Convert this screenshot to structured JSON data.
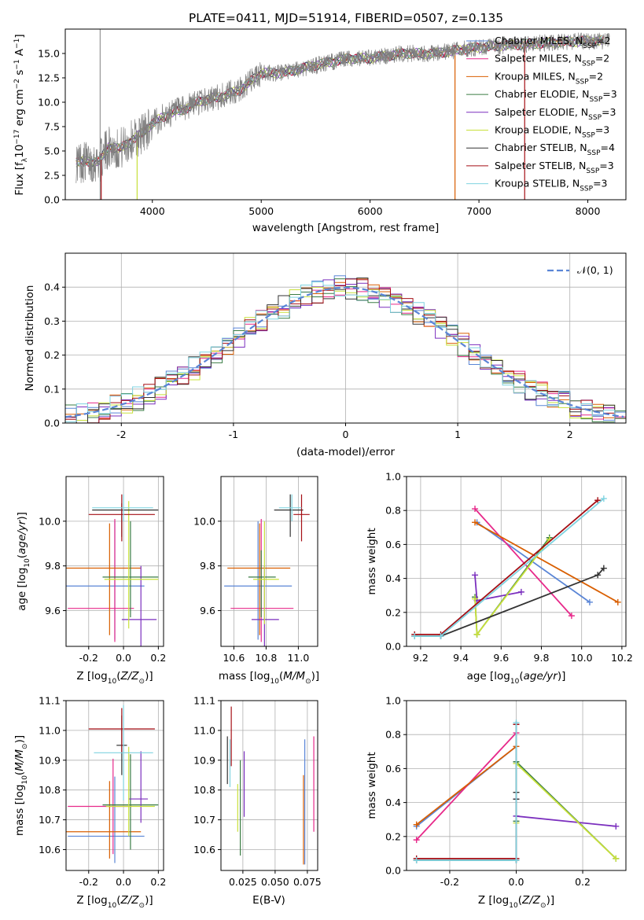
{
  "title": "PLATE=0411, MJD=51914, FIBERID=0507, z=0.135",
  "models": [
    {
      "name": "Chabrier MILES",
      "nssp": "2",
      "color": "#5a85d6"
    },
    {
      "name": "Salpeter MILES",
      "nssp": "2",
      "color": "#e7298a"
    },
    {
      "name": "Kroupa MILES",
      "nssp": "2",
      "color": "#d95f02"
    },
    {
      "name": "Chabrier ELODIE",
      "nssp": "3",
      "color": "#3a7d44"
    },
    {
      "name": "Salpeter ELODIE",
      "nssp": "3",
      "color": "#7b2fbe"
    },
    {
      "name": "Kroupa ELODIE",
      "nssp": "3",
      "color": "#c8e03a"
    },
    {
      "name": "Chabrier STELIB",
      "nssp": "4",
      "color": "#333333"
    },
    {
      "name": "Salpeter STELIB",
      "nssp": "3",
      "color": "#a50f15"
    },
    {
      "name": "Kroupa STELIB",
      "nssp": "3",
      "color": "#7fd3e0"
    }
  ],
  "chart_data": [
    {
      "id": "spectrum",
      "type": "line",
      "xlabel": "wavelength [Angstrom, rest frame]",
      "ylabel": "Flux [f_λ 10^-17 erg cm^-2 s^-1 A^-1]",
      "xlim": [
        3200,
        8350
      ],
      "ylim": [
        0,
        17.5
      ],
      "xticks": [
        4000,
        5000,
        6000,
        7000,
        8000
      ],
      "yticks": [
        0.0,
        2.5,
        5.0,
        7.5,
        10.0,
        12.5,
        15.0
      ],
      "grid": false,
      "legend": "upper right",
      "data_envelope": {
        "x": [
          3300,
          3450,
          3520,
          3600,
          3700,
          3800,
          3900,
          4000,
          4100,
          4200,
          4300,
          4400,
          4600,
          4800,
          5000,
          5200,
          5500,
          5800,
          6000,
          6300,
          6600,
          6900,
          7200,
          7500,
          7800,
          8100
        ],
        "y": [
          3.9,
          3.9,
          4.0,
          5.5,
          5.2,
          6.0,
          6.8,
          7.8,
          8.5,
          9.0,
          9.3,
          10.0,
          10.5,
          11.2,
          13.0,
          13.0,
          13.8,
          14.5,
          14.5,
          15.0,
          15.0,
          15.5,
          15.8,
          16.0,
          16.2,
          16.3
        ]
      },
      "drops": [
        {
          "series": "Salpeter STELIB",
          "x": 3530
        },
        {
          "series": "Kroupa ELODIE",
          "x": 3860
        },
        {
          "series": "Kroupa MILES",
          "x": 6780
        },
        {
          "series": "Salpeter STELIB",
          "x": 7420
        }
      ]
    },
    {
      "id": "residuals",
      "type": "area",
      "xlabel": "(data-model)/error",
      "ylabel": "Normed distribution",
      "xlim": [
        -2.5,
        2.5
      ],
      "ylim": [
        0,
        0.5
      ],
      "xticks": [
        -2,
        -1,
        0,
        1,
        2
      ],
      "yticks": [
        0.0,
        0.1,
        0.2,
        0.3,
        0.4
      ],
      "grid": true,
      "legend": "upper right",
      "reference": {
        "label": "𝒩(0, 1)",
        "mean": 0,
        "sigma": 1,
        "color": "#5a85d6"
      },
      "bin_width": 0.1
    },
    {
      "id": "age_vs_Z",
      "type": "scatter",
      "xlabel": "Z [log10(Z/Z⊙)]",
      "ylabel": "age [log10(age/yr)]",
      "xlim": [
        -0.33,
        0.23
      ],
      "ylim": [
        9.44,
        10.2
      ],
      "xticks": [
        -0.2,
        0.0,
        0.2
      ],
      "yticks": [
        9.6,
        9.8,
        10.0
      ],
      "grid": true,
      "points": [
        {
          "series": "Chabrier MILES",
          "x": -0.05,
          "y": 9.71,
          "xerr": [
            0.29,
            0.17
          ],
          "yerr": [
            0.24,
            0.29
          ]
        },
        {
          "series": "Salpeter MILES",
          "x": -0.05,
          "y": 9.61,
          "xerr": [
            0.27,
            0.11
          ],
          "yerr": [
            0.15,
            0.4
          ]
        },
        {
          "series": "Kroupa MILES",
          "x": -0.08,
          "y": 9.79,
          "xerr": [
            0.25,
            0.18
          ],
          "yerr": [
            0.3,
            0.2
          ]
        },
        {
          "series": "Chabrier ELODIE",
          "x": 0.04,
          "y": 9.75,
          "xerr": [
            0.16,
            0.16
          ],
          "yerr": [
            0.18,
            0.25
          ]
        },
        {
          "series": "Salpeter ELODIE",
          "x": 0.1,
          "y": 9.56,
          "xerr": [
            0.11,
            0.09
          ],
          "yerr": [
            0.12,
            0.24
          ]
        },
        {
          "series": "Kroupa ELODIE",
          "x": 0.03,
          "y": 9.74,
          "xerr": [
            0.14,
            0.17
          ],
          "yerr": [
            0.22,
            0.35
          ]
        },
        {
          "series": "Chabrier STELIB",
          "x": -0.01,
          "y": 10.05,
          "xerr": [
            0.17,
            0.21
          ],
          "yerr": [
            0.12,
            0.03
          ]
        },
        {
          "series": "Salpeter STELIB",
          "x": -0.01,
          "y": 10.03,
          "xerr": [
            0.19,
            0.19
          ],
          "yerr": [
            0.12,
            0.09
          ]
        },
        {
          "series": "Kroupa STELIB",
          "x": 0.0,
          "y": 10.06,
          "xerr": [
            0.18,
            0.17
          ],
          "yerr": [
            0.06,
            0.06
          ]
        }
      ]
    },
    {
      "id": "age_vs_mass",
      "type": "scatter",
      "xlabel": "mass [log10(M/M⊙)]",
      "ylabel": "",
      "xlim": [
        10.52,
        11.12
      ],
      "ylim": [
        9.44,
        10.2
      ],
      "xticks": [
        10.6,
        10.8,
        11.0
      ],
      "yticks": [
        9.6,
        9.8,
        10.0
      ],
      "grid": true,
      "points": [
        {
          "series": "Chabrier MILES",
          "x": 10.75,
          "y": 9.71,
          "xerr": [
            0.21,
            0.21
          ],
          "yerr": [
            0.24,
            0.29
          ]
        },
        {
          "series": "Salpeter MILES",
          "x": 10.77,
          "y": 9.61,
          "xerr": [
            0.19,
            0.2
          ],
          "yerr": [
            0.15,
            0.4
          ]
        },
        {
          "series": "Kroupa MILES",
          "x": 10.76,
          "y": 9.79,
          "xerr": [
            0.2,
            0.19
          ],
          "yerr": [
            0.3,
            0.2
          ]
        },
        {
          "series": "Chabrier ELODIE",
          "x": 10.77,
          "y": 9.75,
          "xerr": [
            0.08,
            0.09
          ],
          "yerr": [
            0.18,
            0.12
          ]
        },
        {
          "series": "Salpeter ELODIE",
          "x": 10.79,
          "y": 9.56,
          "xerr": [
            0.08,
            0.09
          ],
          "yerr": [
            0.12,
            0.24
          ]
        },
        {
          "series": "Kroupa ELODIE",
          "x": 10.79,
          "y": 9.74,
          "xerr": [
            0.07,
            0.09
          ],
          "yerr": [
            0.2,
            0.26
          ]
        },
        {
          "series": "Chabrier STELIB",
          "x": 10.95,
          "y": 10.05,
          "xerr": [
            0.1,
            0.08
          ],
          "yerr": [
            0.12,
            0.07
          ]
        },
        {
          "series": "Salpeter STELIB",
          "x": 11.02,
          "y": 10.03,
          "xerr": [
            0.05,
            0.05
          ],
          "yerr": [
            0.12,
            0.09
          ]
        },
        {
          "series": "Kroupa STELIB",
          "x": 10.96,
          "y": 10.06,
          "xerr": [
            0.08,
            0.06
          ],
          "yerr": [
            0.06,
            0.06
          ]
        }
      ]
    },
    {
      "id": "weight_vs_age",
      "type": "line",
      "xlabel": "age [log10(age/yr)]",
      "ylabel": "mass weight",
      "xlim": [
        9.13,
        10.22
      ],
      "ylim": [
        0,
        1
      ],
      "xticks": [
        9.2,
        9.4,
        9.6,
        9.8,
        10.0,
        10.2
      ],
      "yticks": [
        0.0,
        0.2,
        0.4,
        0.6,
        0.8,
        1.0
      ],
      "grid": true,
      "series": [
        {
          "name": "Chabrier MILES",
          "x": [
            9.48,
            10.04
          ],
          "y": [
            0.73,
            0.26
          ]
        },
        {
          "name": "Salpeter MILES",
          "x": [
            9.47,
            9.95
          ],
          "y": [
            0.81,
            0.18
          ]
        },
        {
          "name": "Kroupa MILES",
          "x": [
            9.47,
            10.18
          ],
          "y": [
            0.73,
            0.26
          ]
        },
        {
          "name": "Chabrier ELODIE",
          "x": [
            9.47,
            9.48,
            9.84
          ],
          "y": [
            0.29,
            0.07,
            0.64
          ]
        },
        {
          "name": "Salpeter ELODIE",
          "x": [
            9.47,
            9.48,
            9.7
          ],
          "y": [
            0.42,
            0.27,
            0.32
          ]
        },
        {
          "name": "Kroupa ELODIE",
          "x": [
            9.47,
            9.48,
            9.84
          ],
          "y": [
            0.28,
            0.07,
            0.63
          ]
        },
        {
          "name": "Chabrier STELIB",
          "x": [
            9.17,
            9.3,
            10.08,
            10.11
          ],
          "y": [
            0.06,
            0.06,
            0.42,
            0.46
          ]
        },
        {
          "name": "Salpeter STELIB",
          "x": [
            9.17,
            9.3,
            10.08
          ],
          "y": [
            0.07,
            0.07,
            0.86
          ]
        },
        {
          "name": "Kroupa STELIB",
          "x": [
            9.17,
            9.3,
            10.11
          ],
          "y": [
            0.06,
            0.06,
            0.87
          ]
        }
      ]
    },
    {
      "id": "mass_vs_Z",
      "type": "scatter",
      "xlabel": "Z [log10(Z/Z⊙)]",
      "ylabel": "mass [log10(M/M⊙)]",
      "xlim": [
        -0.33,
        0.23
      ],
      "ylim": [
        10.53,
        11.1
      ],
      "xticks": [
        -0.2,
        0.0,
        0.2
      ],
      "yticks": [
        10.6,
        10.7,
        10.8,
        10.9,
        11.0,
        11.1
      ],
      "grid": true,
      "points": [
        {
          "series": "Chabrier MILES",
          "x": -0.05,
          "y": 10.645,
          "xerr": [
            0.27,
            0.17
          ],
          "yerr": [
            0.09,
            0.2
          ]
        },
        {
          "series": "Salpeter MILES",
          "x": -0.06,
          "y": 10.745,
          "xerr": [
            0.26,
            0.11
          ],
          "yerr": [
            0.16,
            0.16
          ]
        },
        {
          "series": "Kroupa MILES",
          "x": -0.08,
          "y": 10.66,
          "xerr": [
            0.25,
            0.18
          ],
          "yerr": [
            0.09,
            0.17
          ]
        },
        {
          "series": "Chabrier ELODIE",
          "x": 0.04,
          "y": 10.75,
          "xerr": [
            0.16,
            0.16
          ],
          "yerr": [
            0.15,
            0.17
          ]
        },
        {
          "series": "Salpeter ELODIE",
          "x": 0.1,
          "y": 10.77,
          "xerr": [
            0.07,
            0.04
          ],
          "yerr": [
            0.08,
            0.16
          ]
        },
        {
          "series": "Kroupa ELODIE",
          "x": 0.03,
          "y": 10.745,
          "xerr": [
            0.13,
            0.15
          ],
          "yerr": [
            0.1,
            0.2
          ]
        },
        {
          "series": "Chabrier STELIB",
          "x": -0.01,
          "y": 10.95,
          "xerr": [
            0.03,
            0.03
          ],
          "yerr": [
            0.1,
            0.1
          ]
        },
        {
          "series": "Salpeter STELIB",
          "x": -0.01,
          "y": 11.005,
          "xerr": [
            0.19,
            0.19
          ],
          "yerr": [
            0.08,
            0.07
          ]
        },
        {
          "series": "Kroupa STELIB",
          "x": 0.0,
          "y": 10.925,
          "xerr": [
            0.17,
            0.17
          ],
          "yerr": [
            0.16,
            0.16
          ]
        }
      ]
    },
    {
      "id": "mass_vs_ebv",
      "type": "scatter",
      "xlabel": "E(B-V)",
      "ylabel": "",
      "xlim": [
        0.008,
        0.083
      ],
      "ylim": [
        10.53,
        11.1
      ],
      "xticks": [
        0.025,
        0.05,
        0.075
      ],
      "yticks": [
        10.6,
        10.7,
        10.8,
        10.9,
        11.0,
        11.1
      ],
      "grid": true,
      "points": [
        {
          "series": "Chabrier MILES",
          "x": 0.073,
          "y": 10.76,
          "yerr": [
            0.21,
            0.21
          ]
        },
        {
          "series": "Salpeter MILES",
          "x": 0.08,
          "y": 10.82,
          "yerr": [
            0.16,
            0.16
          ]
        },
        {
          "series": "Kroupa MILES",
          "x": 0.072,
          "y": 10.7,
          "yerr": [
            0.15,
            0.15
          ]
        },
        {
          "series": "Chabrier ELODIE",
          "x": 0.023,
          "y": 10.74,
          "yerr": [
            0.16,
            0.16
          ]
        },
        {
          "series": "Salpeter ELODIE",
          "x": 0.026,
          "y": 10.82,
          "yerr": [
            0.11,
            0.11
          ]
        },
        {
          "series": "Kroupa ELODIE",
          "x": 0.021,
          "y": 10.74,
          "yerr": [
            0.08,
            0.08
          ]
        },
        {
          "series": "Chabrier STELIB",
          "x": 0.013,
          "y": 10.9,
          "yerr": [
            0.08,
            0.08
          ]
        },
        {
          "series": "Salpeter STELIB",
          "x": 0.016,
          "y": 10.98,
          "yerr": [
            0.1,
            0.1
          ]
        },
        {
          "series": "Kroupa STELIB",
          "x": 0.015,
          "y": 10.89,
          "yerr": [
            0.08,
            0.08
          ]
        }
      ]
    },
    {
      "id": "weight_vs_Z",
      "type": "line",
      "xlabel": "Z [log10(Z/Z⊙)]",
      "ylabel": "mass weight",
      "xlim": [
        -0.33,
        0.33
      ],
      "ylim": [
        0,
        1
      ],
      "xticks": [
        -0.2,
        0.0,
        0.2
      ],
      "yticks": [
        0.0,
        0.2,
        0.4,
        0.6,
        0.8,
        1.0
      ],
      "grid": true,
      "series": [
        {
          "name": "Chabrier MILES",
          "x": [
            -0.3,
            0.0
          ],
          "y": [
            0.26,
            0.73
          ]
        },
        {
          "name": "Salpeter MILES",
          "x": [
            -0.3,
            0.0
          ],
          "y": [
            0.18,
            0.81
          ]
        },
        {
          "name": "Kroupa MILES",
          "x": [
            -0.3,
            0.0
          ],
          "y": [
            0.27,
            0.73
          ]
        },
        {
          "name": "Chabrier ELODIE",
          "x": [
            0.0,
            0.0,
            0.3
          ],
          "y": [
            0.29,
            0.64,
            0.07
          ]
        },
        {
          "name": "Salpeter ELODIE",
          "x": [
            0.0,
            0.0,
            0.3
          ],
          "y": [
            0.42,
            0.32,
            0.26
          ]
        },
        {
          "name": "Kroupa ELODIE",
          "x": [
            0.0,
            0.0,
            0.3
          ],
          "y": [
            0.28,
            0.63,
            0.07
          ]
        },
        {
          "name": "Chabrier STELIB",
          "x": [
            -0.3,
            0.0,
            0.0,
            0.0
          ],
          "y": [
            0.06,
            0.06,
            0.42,
            0.46
          ]
        },
        {
          "name": "Salpeter STELIB",
          "x": [
            -0.3,
            0.0,
            0.0
          ],
          "y": [
            0.07,
            0.07,
            0.86
          ]
        },
        {
          "name": "Kroupa STELIB",
          "x": [
            -0.3,
            0.0,
            0.0
          ],
          "y": [
            0.06,
            0.06,
            0.87
          ]
        }
      ]
    }
  ]
}
